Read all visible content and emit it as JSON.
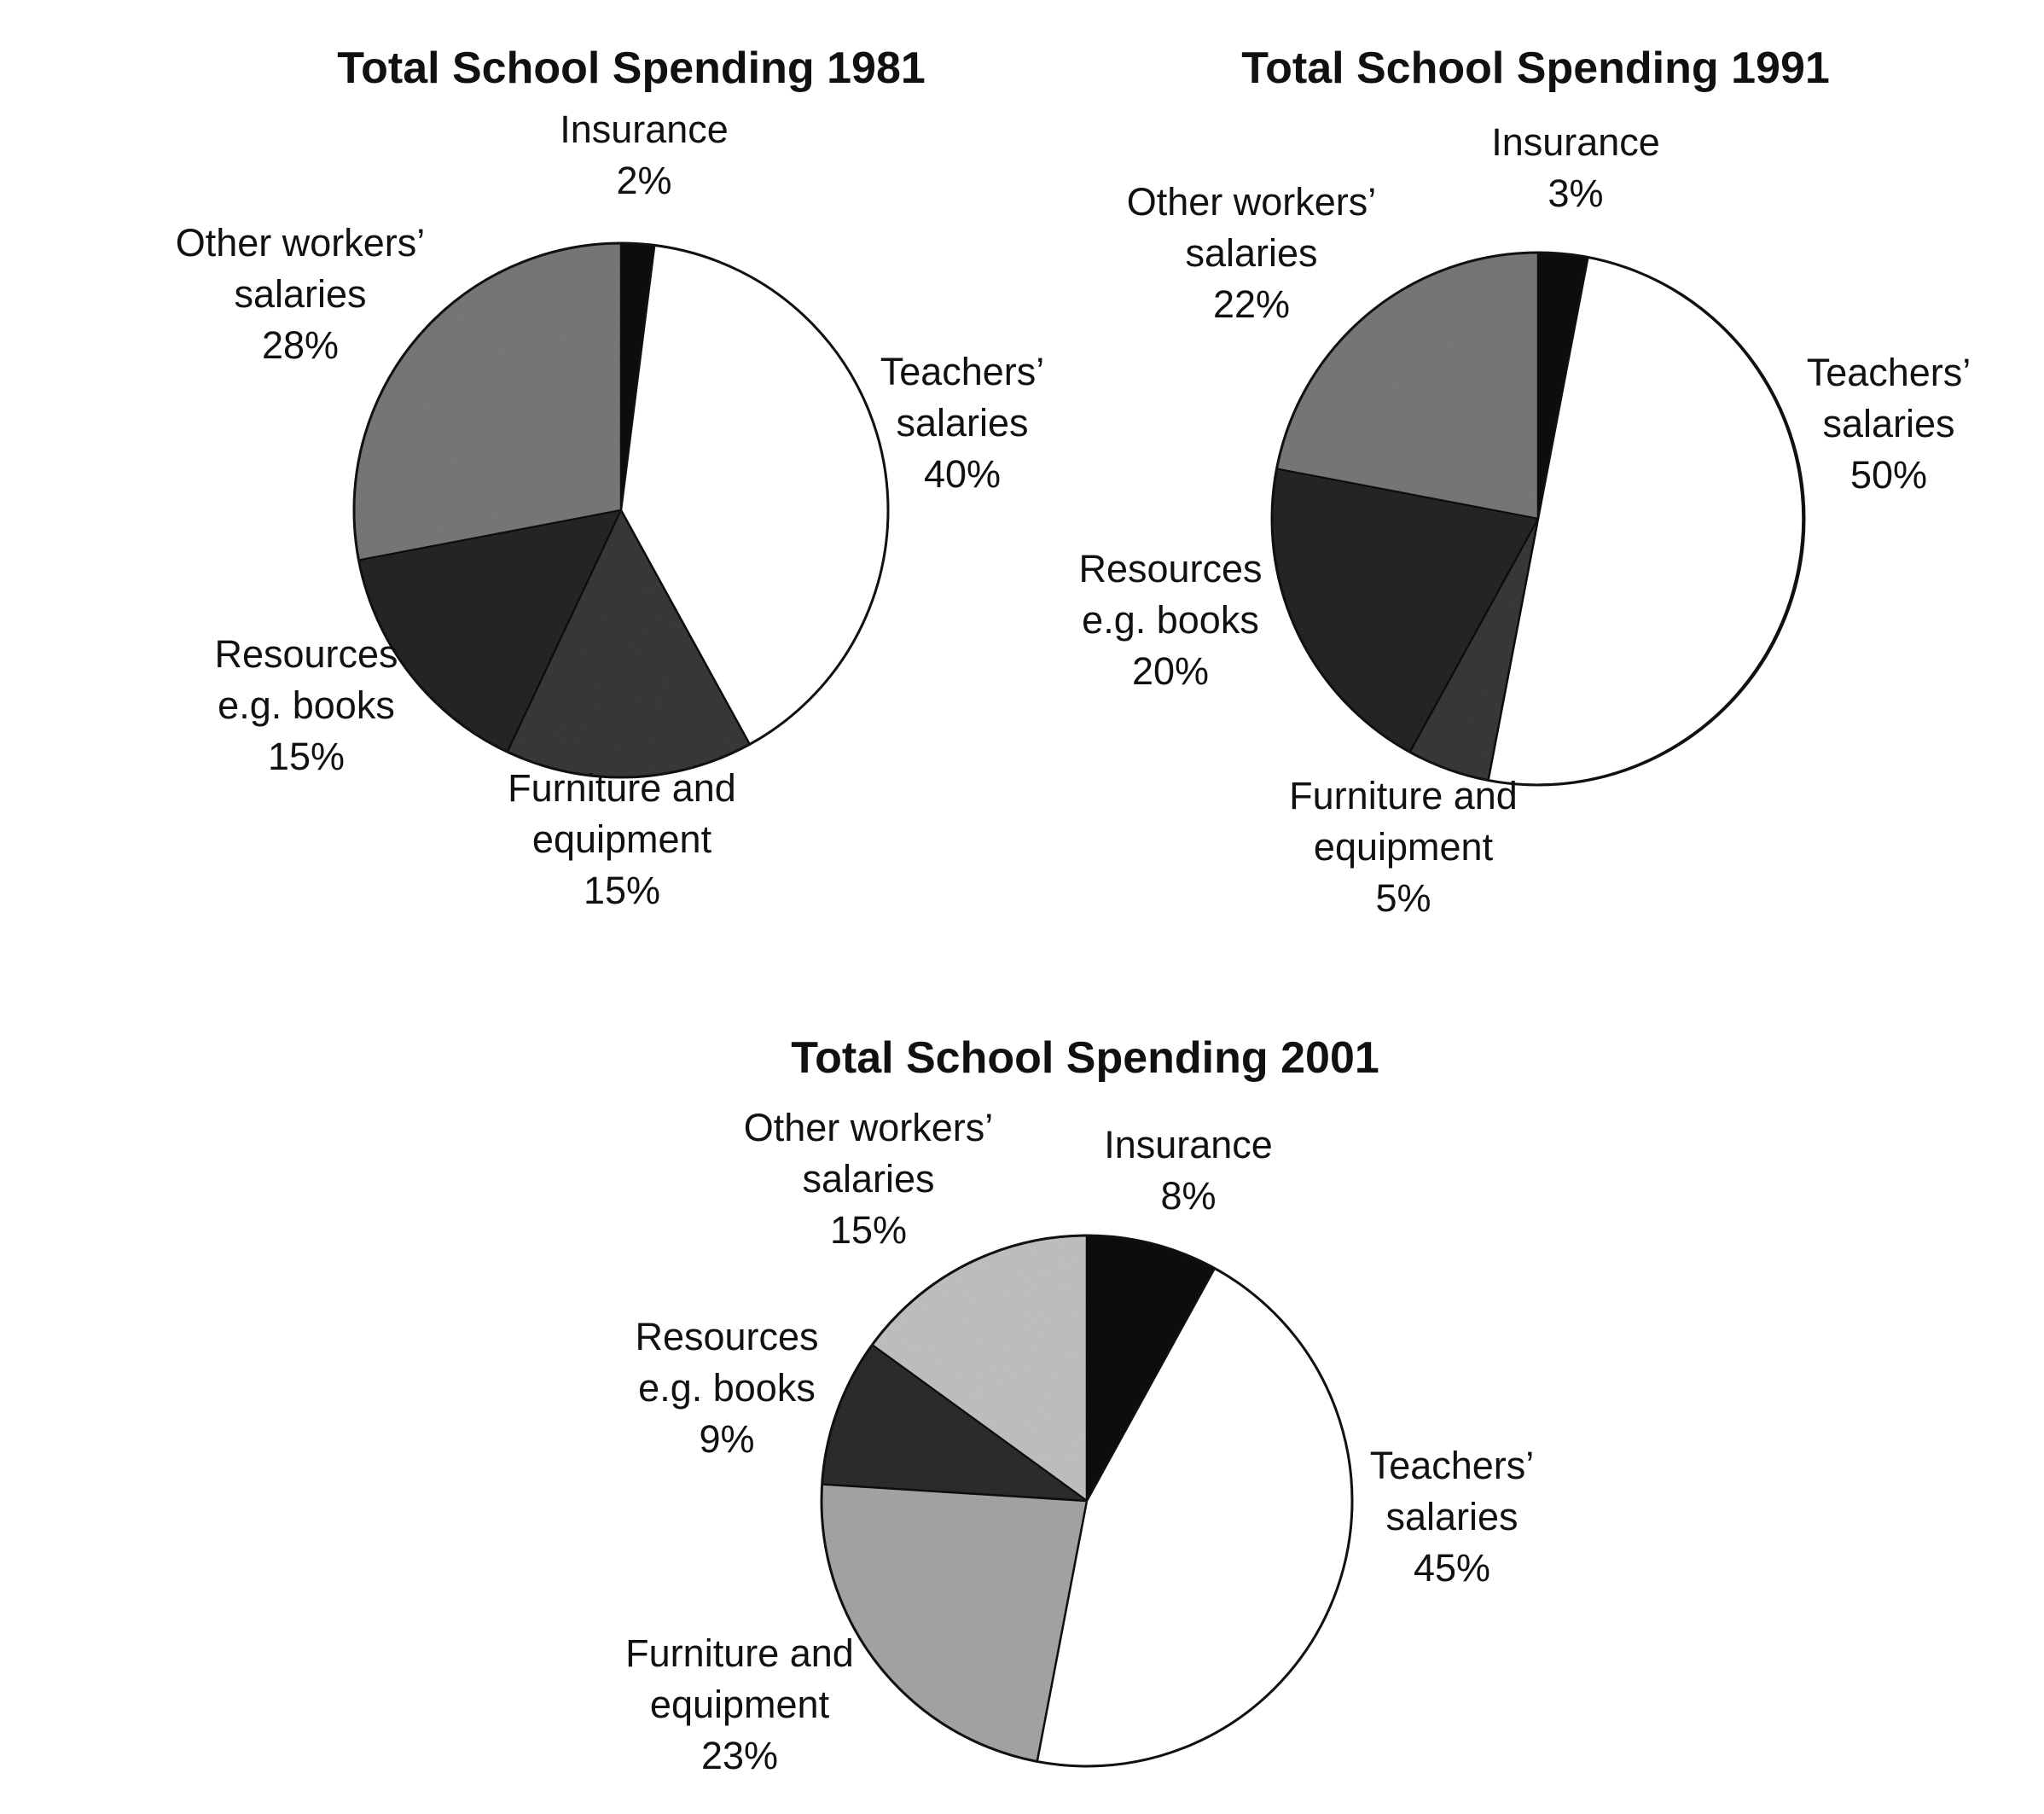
{
  "chart_data": [
    {
      "type": "pie",
      "title": "Total School Spending 1981",
      "slices": [
        {
          "name": "Insurance",
          "value": 2,
          "label_lines": [
            "Insurance",
            "2%"
          ]
        },
        {
          "name": "Teachers' salaries",
          "value": 40,
          "label_lines": [
            "Teachers’",
            "salaries",
            "40%"
          ]
        },
        {
          "name": "Furniture and equipment",
          "value": 15,
          "label_lines": [
            "Furniture and",
            "equipment",
            "15%"
          ]
        },
        {
          "name": "Resources e.g. books",
          "value": 15,
          "label_lines": [
            "Resources",
            "e.g. books",
            "15%"
          ]
        },
        {
          "name": "Other workers' salaries",
          "value": 28,
          "label_lines": [
            "Other workers’",
            "salaries",
            "28%"
          ]
        }
      ]
    },
    {
      "type": "pie",
      "title": "Total School Spending 1991",
      "slices": [
        {
          "name": "Insurance",
          "value": 3,
          "label_lines": [
            "Insurance",
            "3%"
          ]
        },
        {
          "name": "Teachers' salaries",
          "value": 50,
          "label_lines": [
            "Teachers’",
            "salaries",
            "50%"
          ]
        },
        {
          "name": "Furniture and equipment",
          "value": 5,
          "label_lines": [
            "Furniture and",
            "equipment",
            "5%"
          ]
        },
        {
          "name": "Resources e.g. books",
          "value": 20,
          "label_lines": [
            "Resources",
            "e.g. books",
            "20%"
          ]
        },
        {
          "name": "Other workers' salaries",
          "value": 22,
          "label_lines": [
            "Other workers’",
            "salaries",
            "22%"
          ]
        }
      ]
    },
    {
      "type": "pie",
      "title": "Total School Spending 2001",
      "slices": [
        {
          "name": "Insurance",
          "value": 8,
          "label_lines": [
            "Insurance",
            "8%"
          ]
        },
        {
          "name": "Teachers' salaries",
          "value": 45,
          "label_lines": [
            "Teachers’",
            "salaries",
            "45%"
          ]
        },
        {
          "name": "Furniture and equipment",
          "value": 23,
          "label_lines": [
            "Furniture and",
            "equipment",
            "23%"
          ]
        },
        {
          "name": "Resources e.g. books",
          "value": 9,
          "label_lines": [
            "Resources",
            "e.g. books",
            "9%"
          ]
        },
        {
          "name": "Other workers' salaries",
          "value": 15,
          "label_lines": [
            "Other workers’",
            "salaries",
            "15%"
          ]
        }
      ]
    }
  ],
  "slice_colors": {
    "Insurance": "#0d0d0d",
    "Teachers' salaries": "#ffffff",
    "Furniture and equipment": "#3a3a3a",
    "Resources e.g. books": "#262626",
    "Other workers' salaries": "#7a7a7a"
  },
  "slice_colors_2001": {
    "Insurance": "#0d0d0d",
    "Teachers' salaries": "#ffffff",
    "Furniture and equipment": "#a8a8a8",
    "Resources e.g. books": "#2e2e2e",
    "Other workers' salaries": "#c4c4c4"
  }
}
